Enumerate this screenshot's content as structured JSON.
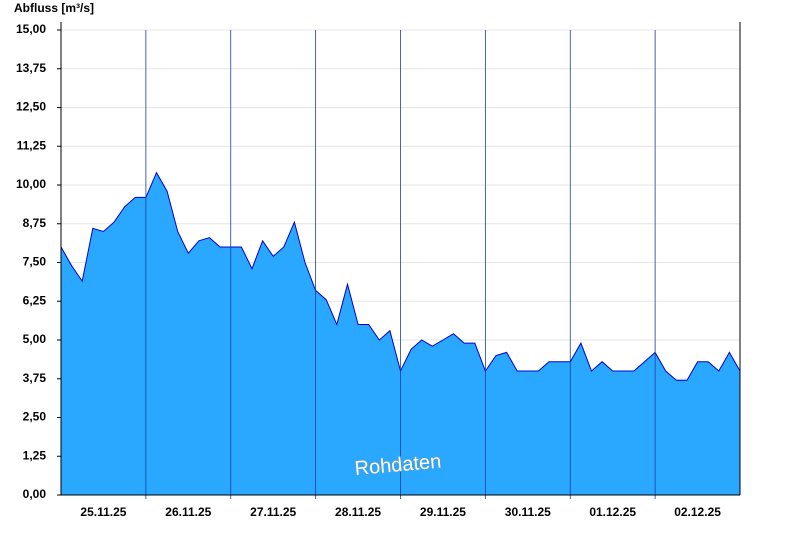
{
  "chart_data": {
    "type": "area",
    "title": "Abfluss [m³/s]",
    "annotation": "Rohdaten",
    "x": [
      0,
      3,
      6,
      9,
      12,
      15,
      18,
      21,
      24,
      27,
      30,
      33,
      36,
      39,
      42,
      45,
      48,
      51,
      54,
      57,
      60,
      63,
      66,
      69,
      72,
      75,
      78,
      81,
      84,
      87,
      90,
      93,
      96,
      99,
      102,
      105,
      108,
      111,
      114,
      117,
      120,
      123,
      126,
      129,
      132,
      135,
      138,
      141,
      144,
      147,
      150,
      153,
      156,
      159,
      162,
      165,
      168,
      171,
      174,
      177,
      180,
      183,
      186,
      189,
      192
    ],
    "series": [
      {
        "name": "Abfluss",
        "color": "#2aa8ff",
        "line_color": "#0000cc",
        "values": [
          8.0,
          7.4,
          6.9,
          8.6,
          8.5,
          8.8,
          9.3,
          9.6,
          9.6,
          10.4,
          9.8,
          8.5,
          7.8,
          8.2,
          8.3,
          8.0,
          8.0,
          8.0,
          7.3,
          8.2,
          7.7,
          8.0,
          8.8,
          7.5,
          6.6,
          6.3,
          5.5,
          6.8,
          5.5,
          5.5,
          5.0,
          5.3,
          4.0,
          4.7,
          5.0,
          4.8,
          5.0,
          5.2,
          4.9,
          4.9,
          4.0,
          4.5,
          4.6,
          4.0,
          4.0,
          4.0,
          4.3,
          4.3,
          4.3,
          4.9,
          4.0,
          4.3,
          4.0,
          4.0,
          4.0,
          4.3,
          4.6,
          4.0,
          3.7,
          3.7,
          4.3,
          4.3,
          4.0,
          4.6,
          4.0
        ]
      }
    ],
    "xlim": [
      0,
      192
    ],
    "xticks": [
      {
        "value": 12,
        "label": "25.11.25"
      },
      {
        "value": 36,
        "label": "26.11.25"
      },
      {
        "value": 60,
        "label": "27.11.25"
      },
      {
        "value": 84,
        "label": "28.11.25"
      },
      {
        "value": 108,
        "label": "29.11.25"
      },
      {
        "value": 132,
        "label": "30.11.25"
      },
      {
        "value": 156,
        "label": "01.12.25"
      },
      {
        "value": 180,
        "label": "02.12.25"
      }
    ],
    "xgrid": [
      24,
      48,
      72,
      96,
      120,
      144,
      168
    ],
    "ylim": [
      0,
      15
    ],
    "yticks": [
      {
        "value": 0,
        "label": "0,00"
      },
      {
        "value": 1.25,
        "label": "1,25"
      },
      {
        "value": 2.5,
        "label": "2,50"
      },
      {
        "value": 3.75,
        "label": "3,75"
      },
      {
        "value": 5,
        "label": "5,00"
      },
      {
        "value": 6.25,
        "label": "6,25"
      },
      {
        "value": 7.5,
        "label": "7,50"
      },
      {
        "value": 8.75,
        "label": "8,75"
      },
      {
        "value": 10,
        "label": "10,00"
      },
      {
        "value": 11.25,
        "label": "11,25"
      },
      {
        "value": 12.5,
        "label": "12,50"
      },
      {
        "value": 13.75,
        "label": "13,75"
      },
      {
        "value": 15,
        "label": "15,00"
      }
    ],
    "grid": true
  }
}
